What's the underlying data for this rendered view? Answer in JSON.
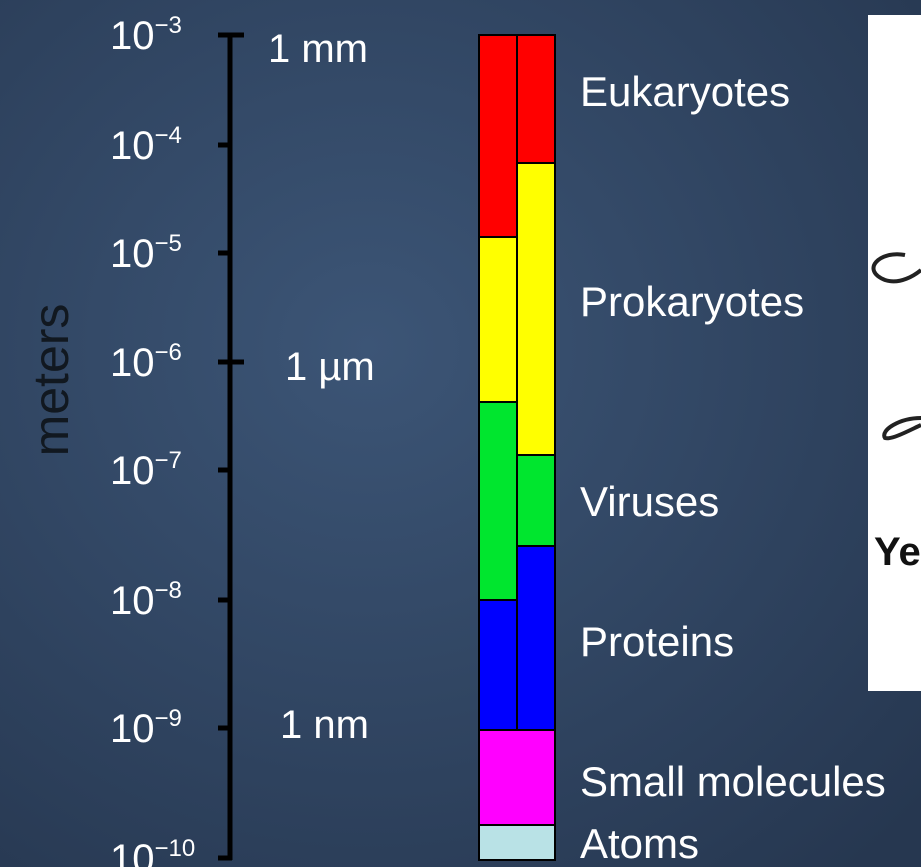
{
  "axis_label": "meters",
  "ticks": [
    {
      "base": "10",
      "exponent": "−3"
    },
    {
      "base": "10",
      "exponent": "−4"
    },
    {
      "base": "10",
      "exponent": "−5"
    },
    {
      "base": "10",
      "exponent": "−6"
    },
    {
      "base": "10",
      "exponent": "−7"
    },
    {
      "base": "10",
      "exponent": "−8"
    },
    {
      "base": "10",
      "exponent": "−9"
    },
    {
      "base": "10",
      "exponent": "−10"
    }
  ],
  "units": [
    "1 mm",
    "1 µm",
    "1 nm"
  ],
  "categories": [
    "Eukaryotes",
    "Prokaryotes",
    "Viruses",
    "Proteins",
    "Small molecules",
    "Atoms"
  ],
  "card_text": "Ye"
}
